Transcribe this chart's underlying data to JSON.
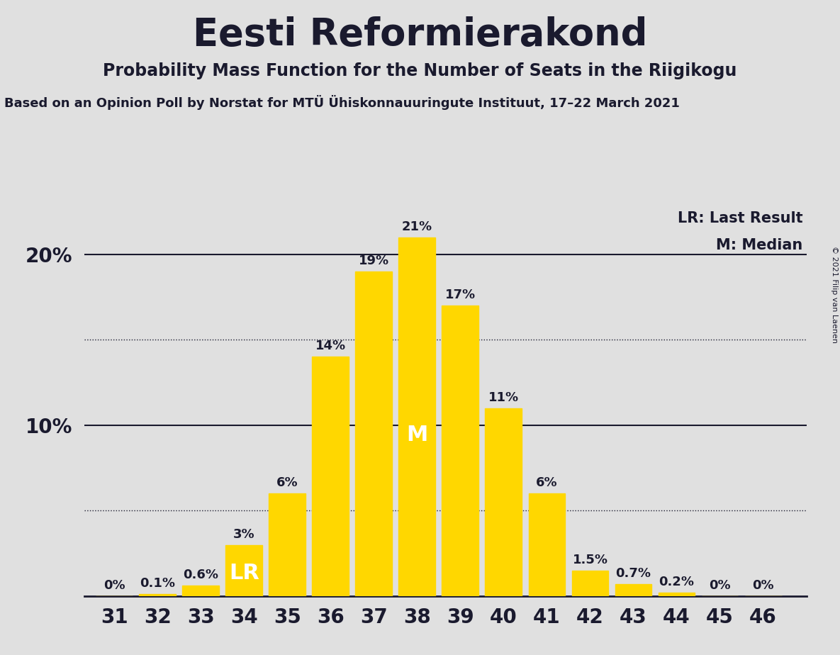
{
  "title": "Eesti Reformierakond",
  "subtitle": "Probability Mass Function for the Number of Seats in the Riigikogu",
  "source_line": "Based on an Opinion Poll by Norstat for MTÜ Ühiskonnauuringute Instituut, 17–22 March 2021",
  "copyright": "© 2021 Filip van Laenen",
  "seats": [
    31,
    32,
    33,
    34,
    35,
    36,
    37,
    38,
    39,
    40,
    41,
    42,
    43,
    44,
    45,
    46
  ],
  "probabilities": [
    0.0,
    0.1,
    0.6,
    3.0,
    6.0,
    14.0,
    19.0,
    21.0,
    17.0,
    11.0,
    6.0,
    1.5,
    0.7,
    0.2,
    0.0,
    0.0
  ],
  "bar_color": "#FFD700",
  "background_color": "#E0E0E0",
  "title_color": "#1a1a2e",
  "label_color": "#1a1a2e",
  "axis_color": "#1a1a2e",
  "LR_seat": 34,
  "median_seat": 38,
  "LR_label": "LR",
  "M_label": "M",
  "legend_LR": "LR: Last Result",
  "legend_M": "M: Median",
  "solid_line_y": [
    10,
    20
  ],
  "dotted_line_y": [
    5,
    15
  ],
  "ylim": [
    0,
    23
  ],
  "title_fontsize": 38,
  "subtitle_fontsize": 17,
  "source_fontsize": 13,
  "bar_label_fontsize": 13,
  "ytick_fontsize": 20,
  "xtick_fontsize": 20,
  "legend_fontsize": 15,
  "annotation_fontsize": 22,
  "copyright_fontsize": 8
}
